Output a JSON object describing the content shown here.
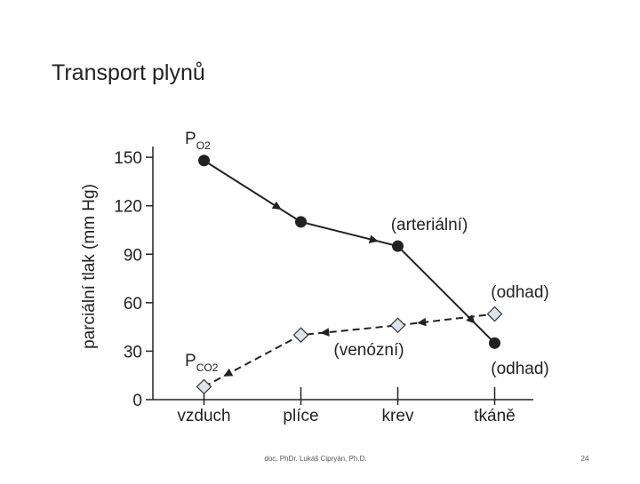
{
  "slide": {
    "title": "Transport plynů",
    "footer": "doc. PhDr. Lukáš Cipryán, Ph.D.",
    "page": "24"
  },
  "chart_data": {
    "type": "line",
    "y_label": "parciální tlak (mm Hg)",
    "categories": [
      "vzduch",
      "plíce",
      "krev",
      "tkáně"
    ],
    "series": [
      {
        "label": {
          "main": "P",
          "sub": "O2"
        },
        "color": "#222222",
        "values": [
          148,
          110,
          95,
          35
        ],
        "dashed": false,
        "arrows": "forward",
        "marker": "circle"
      },
      {
        "label": {
          "main": "P",
          "sub": "CO2"
        },
        "color": "#222222",
        "values": [
          8,
          40,
          46,
          53
        ],
        "dashed": true,
        "arrows": "backward",
        "marker": "diamond"
      }
    ],
    "annotations": [
      "(arteriální)",
      "(odhad)",
      "(venózní)",
      "(odhad)"
    ],
    "ylim": [
      0,
      155
    ],
    "yticks": [
      0,
      30,
      60,
      90,
      120,
      150
    ]
  }
}
